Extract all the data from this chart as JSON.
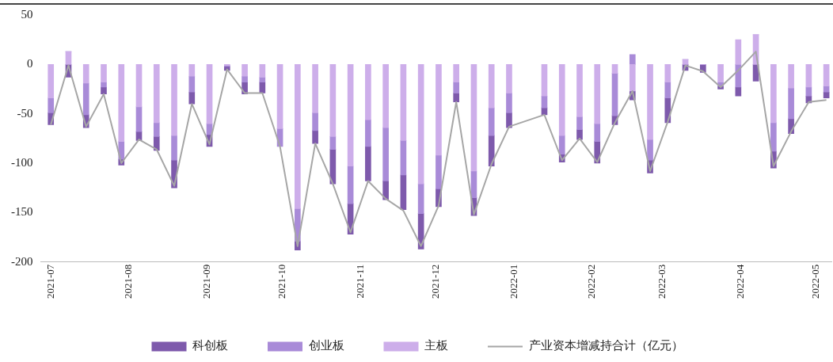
{
  "chart_data": {
    "type": "bar",
    "stacked": true,
    "legend": "bottom",
    "grid": false,
    "x": [
      "2021-07-01",
      "2021-07-08",
      "2021-07-15",
      "2021-07-22",
      "2021-07-29",
      "2021-08-05",
      "2021-08-12",
      "2021-08-19",
      "2021-08-26",
      "2021-09-02",
      "2021-09-09",
      "2021-09-16",
      "2021-09-23",
      "2021-09-30",
      "2021-10-07",
      "2021-10-14",
      "2021-10-21",
      "2021-10-28",
      "2021-11-04",
      "2021-11-11",
      "2021-11-18",
      "2021-11-25",
      "2021-12-02",
      "2021-12-09",
      "2021-12-16",
      "2021-12-23",
      "2021-12-30",
      "2022-01-13",
      "2022-01-20",
      "2022-01-27",
      "2022-02-03",
      "2022-02-10",
      "2022-02-17",
      "2022-02-24",
      "2022-03-03",
      "2022-03-10",
      "2022-03-17",
      "2022-03-24",
      "2022-03-31",
      "2022-04-07",
      "2022-04-14",
      "2022-04-21",
      "2022-04-28",
      "2022-05-05"
    ],
    "xlim": [
      "2021-06-27",
      "2022-05-07"
    ],
    "xticks": [
      "2021-07",
      "2021-08",
      "2021-09",
      "2021-10",
      "2021-11",
      "2021-12",
      "2022-01",
      "2022-02",
      "2022-03",
      "2022-04",
      "2022-05"
    ],
    "ylim": [
      -200,
      50
    ],
    "yticks": [
      -200,
      -150,
      -100,
      -50,
      0,
      50
    ],
    "series": [
      {
        "name": "主板",
        "color": "#cdaeea",
        "values": [
          -34,
          13,
          -19,
          -18,
          -78,
          -43,
          -59,
          -72,
          -12,
          -60,
          -1,
          -12,
          -13,
          -65,
          -146,
          -49,
          -73,
          -103,
          -56,
          -64,
          -77,
          -121,
          -92,
          -18,
          -108,
          -44,
          -29,
          -32,
          -72,
          -53,
          -60,
          -9,
          -27,
          -76,
          -18,
          5,
          0,
          -18,
          25,
          30,
          -59,
          -24,
          -23,
          -22
        ]
      },
      {
        "name": "创业板",
        "color": "#a98bd8",
        "values": [
          -15,
          0,
          -32,
          -5,
          -18,
          -25,
          -14,
          -25,
          -16,
          -11,
          -1,
          -6,
          -5,
          -18,
          -33,
          -18,
          -13,
          -38,
          -27,
          -54,
          -35,
          -30,
          -34,
          -11,
          -27,
          -28,
          -20,
          -12,
          -19,
          -13,
          -18,
          -43,
          10,
          -21,
          -16,
          0,
          0,
          -4,
          -23,
          0,
          -29,
          -31,
          -9,
          -6
        ]
      },
      {
        "name": "科创板",
        "color": "#7e5aac",
        "values": [
          -12,
          -13,
          -13,
          -7,
          -6,
          -9,
          -14,
          -28,
          -12,
          -12,
          -4,
          -12,
          -11,
          null,
          -9,
          -13,
          -35,
          -31,
          -35,
          -19,
          -35,
          -36,
          -18,
          -9,
          -18,
          -31,
          -15,
          -7,
          -8,
          -10,
          -22,
          -9,
          -9,
          -13,
          -25,
          -6,
          -8,
          -3,
          -9,
          -17,
          -17,
          -15,
          -7,
          -6
        ]
      },
      {
        "name": "产业资本增减持合计（亿元）",
        "type": "line",
        "color": "#a6a6a6",
        "marker": "none",
        "line_style": "solid",
        "values": [
          -61,
          -1,
          -63,
          -30,
          -100,
          -76,
          -86,
          -123,
          -40,
          -81,
          -5,
          -29,
          -29,
          -83,
          -184,
          -80,
          -121,
          -170,
          -118,
          -136,
          -148,
          -184,
          -143,
          -38,
          -152,
          -101,
          -63,
          -51,
          -97,
          -75,
          -99,
          -59,
          -27,
          -108,
          -58,
          -1,
          -7,
          -23,
          -6,
          13,
          -103,
          -68,
          -38,
          -36
        ]
      }
    ]
  }
}
